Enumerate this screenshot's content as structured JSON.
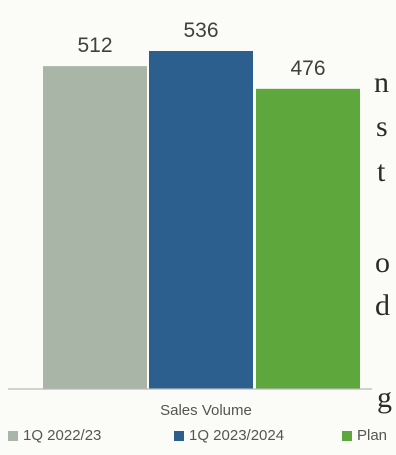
{
  "fragments": {
    "f1": "n",
    "f2": "s",
    "f3": "t",
    "f4": "o",
    "f5": "d",
    "f6": "g"
  },
  "chart_data": {
    "type": "bar",
    "categories": [
      "Sales Volume"
    ],
    "series": [
      {
        "name": "1Q 2022/23",
        "values": [
          512
        ],
        "color": "#a9b5a6"
      },
      {
        "name": "1Q 2023/2024",
        "values": [
          536
        ],
        "color": "#2c5e8e"
      },
      {
        "name": "Plan",
        "values": [
          476
        ],
        "color": "#5ea73c"
      }
    ],
    "xlabel": "Sales Volume",
    "ylabel": "",
    "ylim": [
      0,
      560
    ],
    "grid": false,
    "legend": "bottom"
  }
}
